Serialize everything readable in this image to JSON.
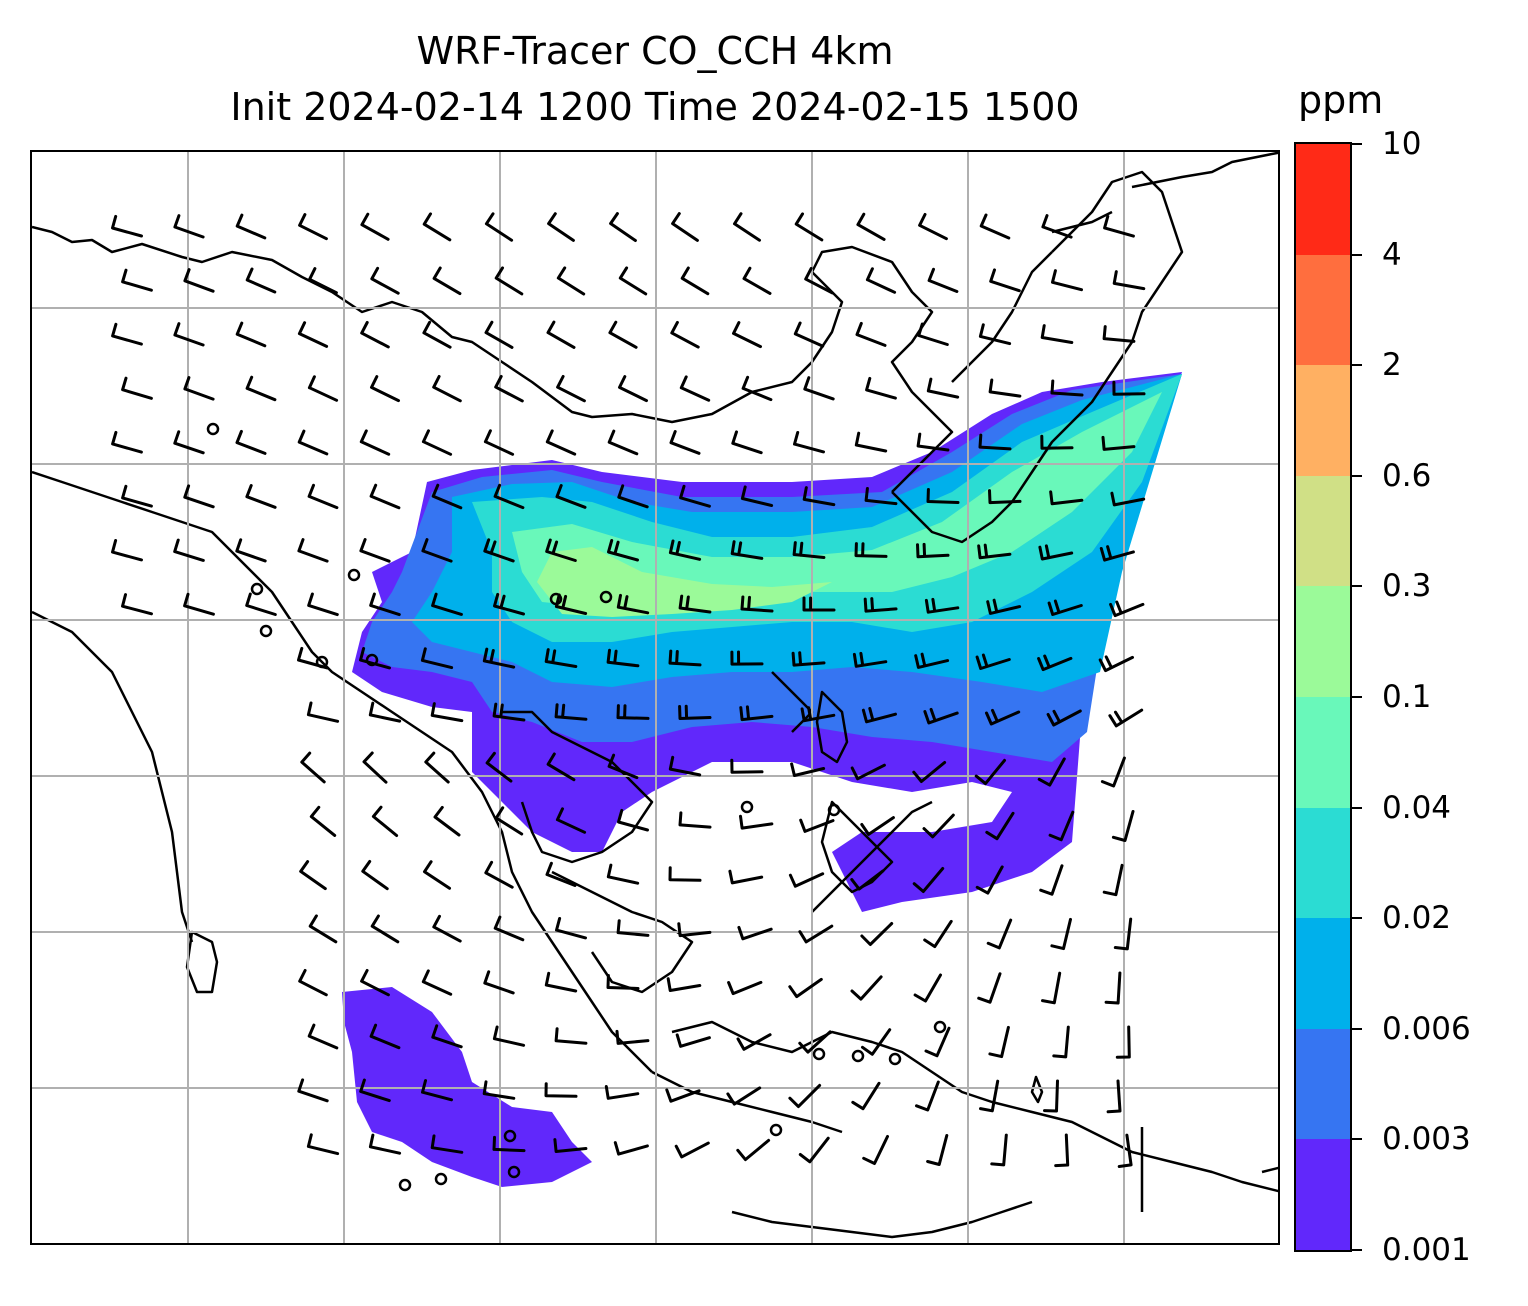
{
  "title": {
    "line1": "WRF-Tracer CO_CCH 4km",
    "line2": "Init 2024-02-14 1200 Time 2024-02-15 1500"
  },
  "colorbar": {
    "unit": "ppm",
    "levels": [
      "0.001",
      "0.003",
      "0.006",
      "0.02",
      "0.04",
      "0.1",
      "0.3",
      "0.6",
      "2",
      "4",
      "10"
    ],
    "colors": [
      "#6128fb",
      "#3675f2",
      "#00b0eb",
      "#2bdcd3",
      "#69f8ba",
      "#9bfa99",
      "#d0e086",
      "#ffb062",
      "#ff6e3e",
      "#ff2a17"
    ]
  },
  "map": {
    "grid": "on",
    "coastline_color": "#000000",
    "gridline_color": "#b0b0b0",
    "wind_barb_color": "#000000"
  }
}
